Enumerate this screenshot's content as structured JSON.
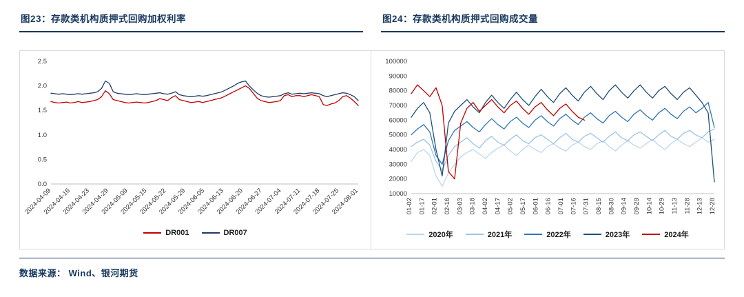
{
  "figures": [
    {
      "title": "图23：存款类机构质押式回购加权利率"
    },
    {
      "title": "图24：存款类机构质押式回购成交量"
    }
  ],
  "footer": {
    "source": "数据来源： Wind、银河期货"
  },
  "theme": {
    "title_color": "#17375E",
    "rule_color": "#17375E",
    "frame_border_color": "#D9D9D9",
    "tick_label_color": "#333333"
  },
  "chart_data": [
    {
      "type": "line",
      "title": "存款类机构质押式回购加权利率",
      "xlabel": "",
      "ylabel": "",
      "ylim": [
        0,
        2.5
      ],
      "yticks": [
        0,
        0.5,
        1.0,
        1.5,
        2.0,
        2.5
      ],
      "ytick_labels": [
        "0.0",
        "0.5",
        "1.0",
        "1.5",
        "2.0",
        "2.5"
      ],
      "xticklabels": [
        "2024-04-09",
        "2024-04-16",
        "2024-04-23",
        "2024-04-29",
        "2024-05-09",
        "2024-05-15",
        "2024-05-22",
        "2024-05-29",
        "2024-06-05",
        "2024-06-13",
        "2024-06-20",
        "2024-06-27",
        "2024-07-04",
        "2024-07-11",
        "2024-07-18",
        "2024-07-25",
        "2024-08-01"
      ],
      "x_label_rotation": -45,
      "grid": false,
      "legend_position": "bottom",
      "series": [
        {
          "name": "DR001",
          "color": "#C00000",
          "values": [
            1.68,
            1.66,
            1.65,
            1.66,
            1.67,
            1.65,
            1.66,
            1.68,
            1.66,
            1.67,
            1.68,
            1.7,
            1.72,
            1.78,
            1.9,
            1.84,
            1.72,
            1.7,
            1.68,
            1.66,
            1.65,
            1.66,
            1.67,
            1.66,
            1.65,
            1.66,
            1.68,
            1.7,
            1.74,
            1.72,
            1.7,
            1.76,
            1.8,
            1.72,
            1.7,
            1.68,
            1.66,
            1.67,
            1.68,
            1.66,
            1.68,
            1.7,
            1.72,
            1.74,
            1.76,
            1.8,
            1.84,
            1.88,
            1.92,
            1.96,
            2.0,
            1.95,
            1.85,
            1.75,
            1.7,
            1.68,
            1.66,
            1.67,
            1.68,
            1.7,
            1.8,
            1.82,
            1.78,
            1.8,
            1.8,
            1.78,
            1.8,
            1.82,
            1.8,
            1.78,
            1.62,
            1.6,
            1.63,
            1.65,
            1.7,
            1.78,
            1.8,
            1.75,
            1.68,
            1.6
          ]
        },
        {
          "name": "DR007",
          "color": "#1F3864",
          "values": [
            1.85,
            1.84,
            1.83,
            1.84,
            1.83,
            1.82,
            1.83,
            1.84,
            1.83,
            1.84,
            1.85,
            1.86,
            1.88,
            1.95,
            2.1,
            2.05,
            1.88,
            1.85,
            1.84,
            1.83,
            1.82,
            1.83,
            1.84,
            1.83,
            1.82,
            1.83,
            1.84,
            1.85,
            1.86,
            1.84,
            1.83,
            1.85,
            1.88,
            1.82,
            1.8,
            1.79,
            1.78,
            1.79,
            1.8,
            1.79,
            1.8,
            1.82,
            1.84,
            1.86,
            1.88,
            1.92,
            1.96,
            2.0,
            2.05,
            2.08,
            2.1,
            2.0,
            1.92,
            1.85,
            1.8,
            1.78,
            1.77,
            1.78,
            1.79,
            1.8,
            1.84,
            1.86,
            1.83,
            1.84,
            1.85,
            1.84,
            1.85,
            1.86,
            1.85,
            1.84,
            1.8,
            1.78,
            1.8,
            1.82,
            1.84,
            1.86,
            1.85,
            1.82,
            1.78,
            1.7
          ]
        }
      ]
    },
    {
      "type": "line",
      "title": "存款类机构质押式回购成交量",
      "xlabel": "",
      "ylabel": "",
      "ylim": [
        10000,
        100000
      ],
      "yticks": [
        10000,
        20000,
        30000,
        40000,
        50000,
        60000,
        70000,
        80000,
        90000,
        100000
      ],
      "ytick_labels": [
        "10000",
        "20000",
        "30000",
        "40000",
        "50000",
        "60000",
        "70000",
        "80000",
        "90000",
        "100000"
      ],
      "xticklabels": [
        "01-02",
        "01-17",
        "02-01",
        "02-16",
        "03-03",
        "03-18",
        "04-02",
        "04-17",
        "05-02",
        "05-17",
        "06-01",
        "06-16",
        "07-01",
        "07-16",
        "07-31",
        "08-15",
        "08-30",
        "09-14",
        "09-29",
        "10-14",
        "10-29",
        "11-13",
        "11-28",
        "12-13",
        "12-28"
      ],
      "x_label_rotation": -90,
      "grid": false,
      "legend_position": "bottom",
      "series": [
        {
          "name": "2020年",
          "color": "#BDD7EE",
          "values": [
            32000,
            38000,
            40000,
            36000,
            22000,
            15000,
            24000,
            30000,
            35000,
            38000,
            40000,
            37000,
            34000,
            38000,
            41000,
            43000,
            39000,
            36000,
            40000,
            43000,
            40000,
            38000,
            42000,
            44000,
            41000,
            39000,
            43000,
            45000,
            42000,
            40000,
            44000,
            46000,
            42000,
            39000,
            43000,
            46000,
            43000,
            41000,
            44000,
            47000,
            43000,
            40000,
            44000,
            47000,
            44000,
            42000,
            45000,
            48000,
            45000,
            47000
          ]
        },
        {
          "name": "2021年",
          "color": "#9DC3E6",
          "values": [
            42000,
            45000,
            47000,
            43000,
            32000,
            26000,
            36000,
            42000,
            45000,
            48000,
            44000,
            41000,
            46000,
            49000,
            45000,
            43000,
            47000,
            50000,
            46000,
            44000,
            48000,
            50000,
            47000,
            44000,
            48000,
            51000,
            47000,
            45000,
            49000,
            51000,
            48000,
            45000,
            49000,
            52000,
            48000,
            46000,
            50000,
            52000,
            49000,
            46000,
            50000,
            53000,
            49000,
            47000,
            51000,
            53000,
            50000,
            48000,
            52000,
            54000
          ]
        },
        {
          "name": "2022年",
          "color": "#2E75B6",
          "values": [
            50000,
            54000,
            57000,
            52000,
            36000,
            30000,
            46000,
            53000,
            56000,
            59000,
            55000,
            52000,
            57000,
            61000,
            57000,
            54000,
            59000,
            62000,
            58000,
            55000,
            60000,
            63000,
            59000,
            56000,
            61000,
            64000,
            60000,
            57000,
            62000,
            65000,
            61000,
            58000,
            63000,
            66000,
            62000,
            59000,
            64000,
            67000,
            63000,
            60000,
            65000,
            68000,
            64000,
            61000,
            66000,
            69000,
            65000,
            68000,
            72000,
            55000
          ]
        },
        {
          "name": "2023年",
          "color": "#1F4E79",
          "values": [
            62000,
            68000,
            72000,
            65000,
            40000,
            22000,
            58000,
            66000,
            70000,
            74000,
            69000,
            65000,
            72000,
            77000,
            72000,
            68000,
            74000,
            79000,
            74000,
            70000,
            76000,
            81000,
            76000,
            72000,
            78000,
            82000,
            77000,
            73000,
            79000,
            83000,
            78000,
            74000,
            80000,
            84000,
            79000,
            75000,
            80000,
            84000,
            79000,
            75000,
            80000,
            83000,
            78000,
            74000,
            79000,
            82000,
            77000,
            72000,
            65000,
            18000
          ]
        },
        {
          "name": "2024年",
          "color": "#C00000",
          "values": [
            78000,
            84000,
            80000,
            76000,
            82000,
            70000,
            25000,
            20000,
            58000,
            68000,
            72000,
            66000,
            70000,
            74000,
            69000,
            65000,
            70000,
            73000,
            68000,
            64000,
            69000,
            72000,
            67000,
            63000,
            68000,
            71000,
            66000,
            62000,
            60000,
            null,
            null,
            null,
            null,
            null,
            null,
            null,
            null,
            null,
            null,
            null,
            null,
            null,
            null,
            null,
            null,
            null,
            null,
            null,
            null,
            null
          ]
        }
      ]
    }
  ]
}
